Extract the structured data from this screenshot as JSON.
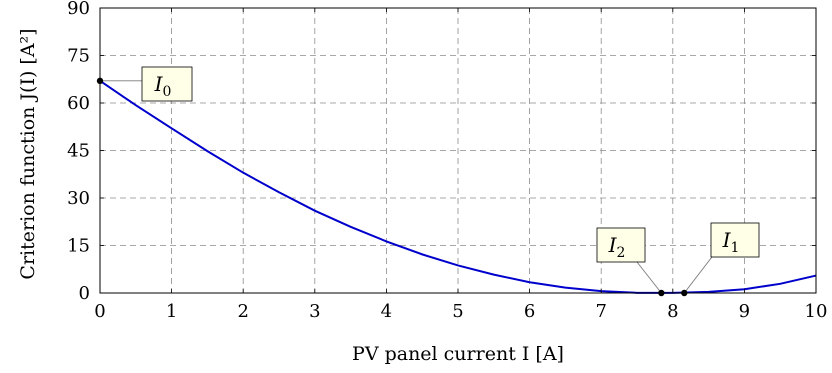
{
  "chart_data": {
    "type": "line",
    "xlabel": "PV panel current I [A]",
    "ylabel": "Criterion function J(I) [A²]",
    "xlim": [
      0,
      10
    ],
    "ylim": [
      0,
      90
    ],
    "xticks": [
      0,
      1,
      2,
      3,
      4,
      5,
      6,
      7,
      8,
      9,
      10
    ],
    "yticks": [
      0,
      15,
      30,
      45,
      60,
      75,
      90
    ],
    "grid": true,
    "grid_style": "dashed",
    "series": [
      {
        "color": "#0000cc",
        "x": [
          0,
          0.5,
          1,
          1.5,
          2,
          2.5,
          3,
          3.5,
          4,
          4.5,
          5,
          5.5,
          6,
          6.5,
          7,
          7.5,
          8,
          8.5,
          9,
          9.5,
          10
        ],
        "y": [
          67,
          59.3,
          52,
          44.8,
          38,
          31.8,
          26,
          20.9,
          16.3,
          12.2,
          8.7,
          5.8,
          3.4,
          1.7,
          0.6,
          0.05,
          0.05,
          0.35,
          1.2,
          2.9,
          5.5
        ]
      }
    ],
    "annotations": [
      {
        "base": "I",
        "sub": "0",
        "x": 0,
        "y": 67
      },
      {
        "base": "I",
        "sub": "2",
        "x": 7.84,
        "y": 0
      },
      {
        "base": "I",
        "sub": "1",
        "x": 8.16,
        "y": 0
      }
    ]
  },
  "colors": {
    "line": "#0000cc",
    "grid": "#8c8c8c",
    "annotation_fill": "#ffffe8"
  }
}
